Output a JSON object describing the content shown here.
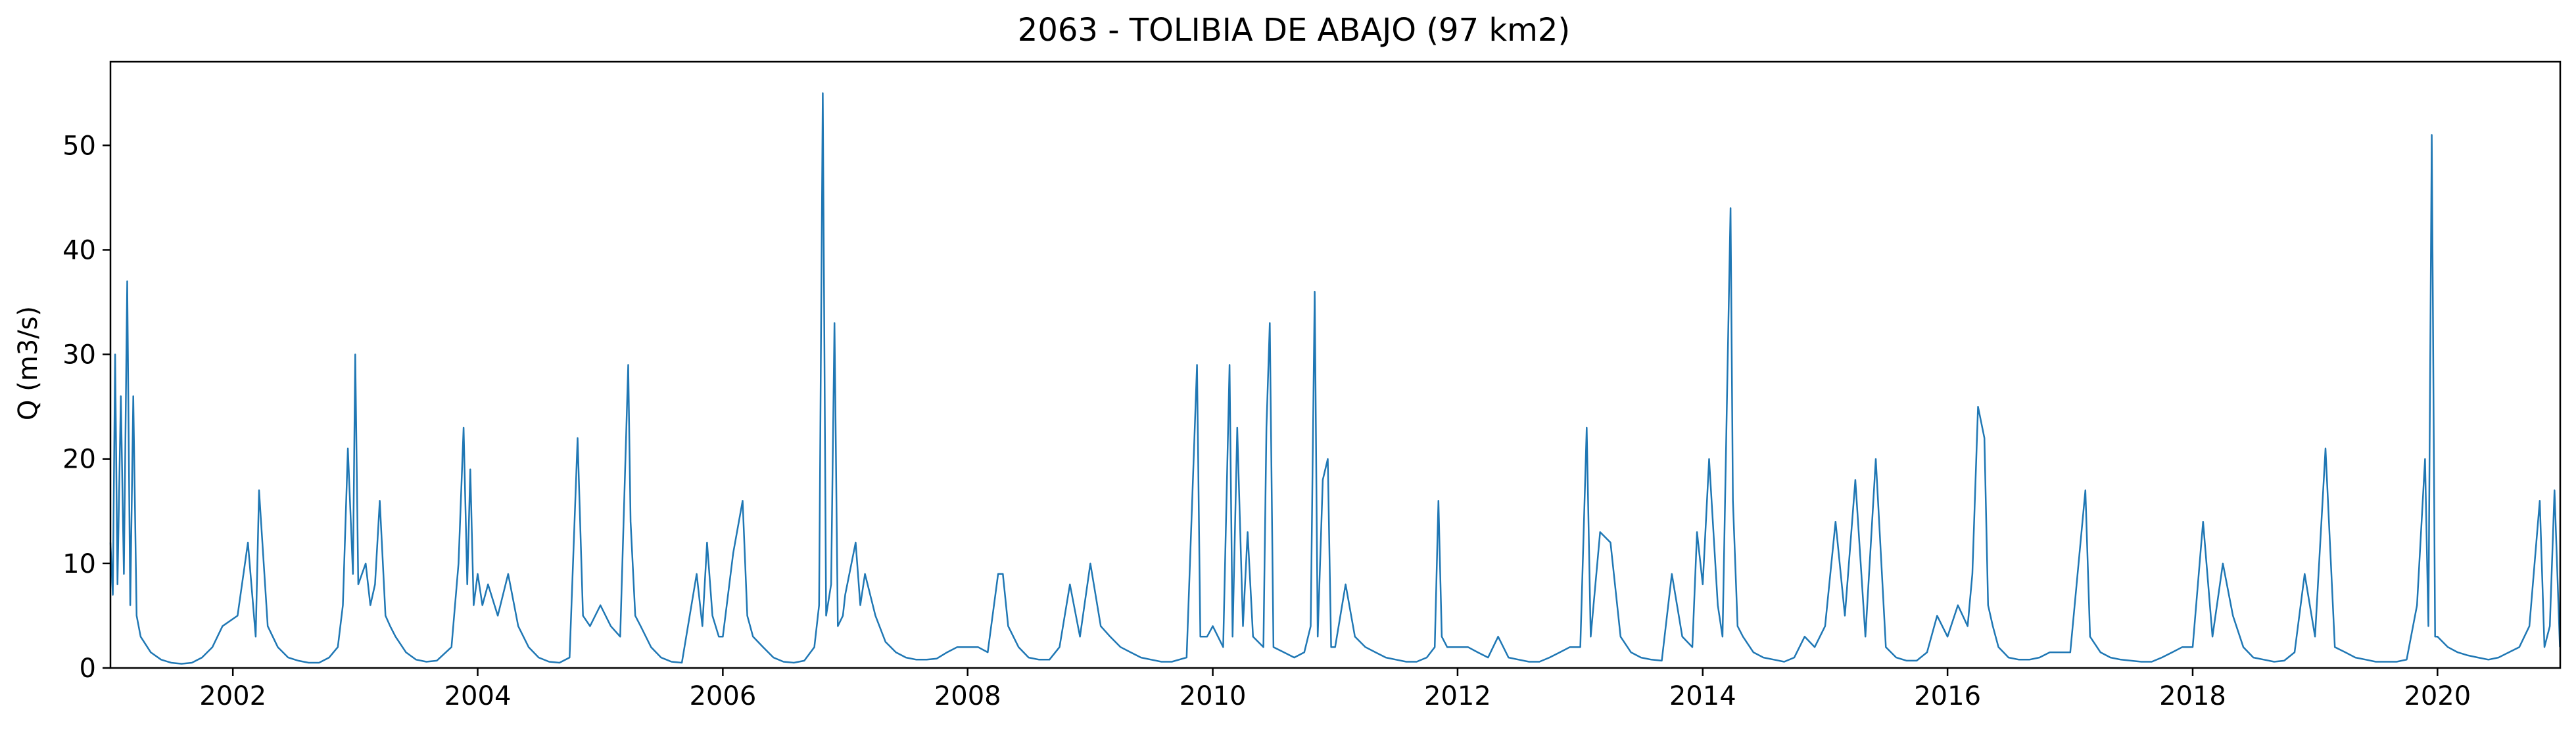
{
  "chart_data": {
    "type": "line",
    "title": "2063 - TOLIBIA DE ABAJO (97 km2)",
    "xlabel": "",
    "ylabel": "Q (m3/s)",
    "x_axis": "date",
    "xlim": [
      "2001-01-01",
      "2021-01-01"
    ],
    "ylim": [
      0,
      58
    ],
    "x_ticks": [
      "2002",
      "2004",
      "2006",
      "2008",
      "2010",
      "2012",
      "2014",
      "2016",
      "2018",
      "2020"
    ],
    "y_ticks": [
      0,
      10,
      20,
      30,
      40,
      50
    ],
    "grid": false,
    "legend": "none",
    "series_color": "#1f77b4",
    "series": [
      {
        "x": [
          "2001-01-01",
          "2001-01-08",
          "2001-01-15",
          "2001-01-22",
          "2001-02-01",
          "2001-02-10",
          "2001-02-20",
          "2001-03-01",
          "2001-03-10",
          "2001-03-20",
          "2001-04-01",
          "2001-05-01",
          "2001-06-01",
          "2001-07-01",
          "2001-08-01",
          "2001-09-01",
          "2001-10-01",
          "2001-11-01",
          "2001-12-01",
          "2002-01-15",
          "2002-02-15",
          "2002-03-10",
          "2002-03-20",
          "2002-04-15",
          "2002-05-15",
          "2002-06-15",
          "2002-07-15",
          "2002-08-15",
          "2002-09-15",
          "2002-10-15",
          "2002-11-10",
          "2002-11-25",
          "2002-12-10",
          "2002-12-25",
          "2003-01-01",
          "2003-01-10",
          "2003-02-01",
          "2003-02-15",
          "2003-03-01",
          "2003-03-15",
          "2003-04-01",
          "2003-04-15",
          "2003-05-01",
          "2003-06-01",
          "2003-07-01",
          "2003-08-01",
          "2003-09-01",
          "2003-10-15",
          "2003-11-05",
          "2003-11-20",
          "2003-12-01",
          "2003-12-10",
          "2003-12-20",
          "2004-01-01",
          "2004-01-15",
          "2004-02-01",
          "2004-03-01",
          "2004-04-01",
          "2004-05-01",
          "2004-06-01",
          "2004-07-01",
          "2004-08-01",
          "2004-09-01",
          "2004-10-01",
          "2004-10-25",
          "2004-11-10",
          "2004-12-01",
          "2005-01-01",
          "2005-02-01",
          "2005-03-01",
          "2005-03-25",
          "2005-04-01",
          "2005-04-15",
          "2005-05-01",
          "2005-06-01",
          "2005-07-01",
          "2005-08-01",
          "2005-09-01",
          "2005-10-15",
          "2005-11-01",
          "2005-11-15",
          "2005-12-01",
          "2005-12-20",
          "2006-01-01",
          "2006-02-01",
          "2006-03-01",
          "2006-03-15",
          "2006-04-01",
          "2006-05-01",
          "2006-06-01",
          "2006-07-01",
          "2006-08-01",
          "2006-09-01",
          "2006-10-01",
          "2006-10-15",
          "2006-10-26",
          "2006-11-05",
          "2006-11-20",
          "2006-11-30",
          "2006-12-10",
          "2006-12-25",
          "2007-01-01",
          "2007-02-01",
          "2007-02-15",
          "2007-03-01",
          "2007-04-01",
          "2007-05-01",
          "2007-06-01",
          "2007-07-01",
          "2007-08-01",
          "2007-09-01",
          "2007-10-01",
          "2007-11-01",
          "2007-12-01",
          "2008-01-01",
          "2008-02-01",
          "2008-03-01",
          "2008-04-01",
          "2008-04-15",
          "2008-05-01",
          "2008-06-01",
          "2008-07-01",
          "2008-08-01",
          "2008-09-01",
          "2008-10-01",
          "2008-11-01",
          "2008-12-01",
          "2009-01-01",
          "2009-02-01",
          "2009-03-01",
          "2009-04-01",
          "2009-05-01",
          "2009-06-01",
          "2009-07-01",
          "2009-08-01",
          "2009-09-01",
          "2009-10-15",
          "2009-11-15",
          "2009-11-25",
          "2009-12-15",
          "2010-01-01",
          "2010-02-01",
          "2010-02-20",
          "2010-03-01",
          "2010-03-15",
          "2010-04-01",
          "2010-04-15",
          "2010-05-01",
          "2010-06-01",
          "2010-06-10",
          "2010-06-20",
          "2010-07-01",
          "2010-08-01",
          "2010-09-01",
          "2010-10-01",
          "2010-10-20",
          "2010-11-01",
          "2010-11-10",
          "2010-11-25",
          "2010-12-10",
          "2010-12-20",
          "2011-01-01",
          "2011-02-01",
          "2011-03-01",
          "2011-04-01",
          "2011-05-01",
          "2011-06-01",
          "2011-07-01",
          "2011-08-01",
          "2011-09-01",
          "2011-10-01",
          "2011-10-25",
          "2011-11-05",
          "2011-11-15",
          "2011-12-01",
          "2012-01-01",
          "2012-02-01",
          "2012-03-01",
          "2012-04-01",
          "2012-05-01",
          "2012-06-01",
          "2012-07-01",
          "2012-08-01",
          "2012-09-01",
          "2012-10-01",
          "2012-11-01",
          "2012-12-01",
          "2013-01-01",
          "2013-01-20",
          "2013-02-01",
          "2013-03-01",
          "2013-04-01",
          "2013-05-01",
          "2013-06-01",
          "2013-07-01",
          "2013-08-01",
          "2013-09-01",
          "2013-10-01",
          "2013-11-01",
          "2013-12-01",
          "2013-12-15",
          "2014-01-01",
          "2014-01-20",
          "2014-02-15",
          "2014-03-01",
          "2014-03-25",
          "2014-04-01",
          "2014-04-15",
          "2014-05-01",
          "2014-06-01",
          "2014-07-01",
          "2014-08-01",
          "2014-09-01",
          "2014-10-01",
          "2014-11-01",
          "2014-12-01",
          "2015-01-01",
          "2015-02-01",
          "2015-03-01",
          "2015-04-01",
          "2015-05-01",
          "2015-06-01",
          "2015-07-01",
          "2015-08-01",
          "2015-09-01",
          "2015-10-01",
          "2015-11-01",
          "2015-12-01",
          "2016-01-01",
          "2016-02-01",
          "2016-03-01",
          "2016-03-15",
          "2016-04-01",
          "2016-04-20",
          "2016-05-01",
          "2016-05-15",
          "2016-06-01",
          "2016-07-01",
          "2016-08-01",
          "2016-09-01",
          "2016-10-01",
          "2016-11-01",
          "2016-12-01",
          "2017-01-01",
          "2017-02-15",
          "2017-03-01",
          "2017-04-01",
          "2017-05-01",
          "2017-06-01",
          "2017-07-01",
          "2017-08-01",
          "2017-09-01",
          "2017-10-01",
          "2017-11-01",
          "2017-12-01",
          "2018-01-01",
          "2018-02-01",
          "2018-03-01",
          "2018-04-01",
          "2018-05-01",
          "2018-06-01",
          "2018-07-01",
          "2018-08-01",
          "2018-09-01",
          "2018-10-01",
          "2018-11-01",
          "2018-12-01",
          "2019-01-01",
          "2019-02-01",
          "2019-03-01",
          "2019-04-01",
          "2019-05-01",
          "2019-06-01",
          "2019-07-01",
          "2019-08-01",
          "2019-09-01",
          "2019-10-01",
          "2019-11-01",
          "2019-11-25",
          "2019-12-05",
          "2019-12-15",
          "2019-12-25",
          "2020-01-01",
          "2020-02-01",
          "2020-03-01",
          "2020-04-01",
          "2020-05-01",
          "2020-06-01",
          "2020-07-01",
          "2020-08-01",
          "2020-09-01",
          "2020-10-01",
          "2020-11-01",
          "2020-11-15",
          "2020-12-01",
          "2020-12-15",
          "2020-12-31"
        ],
        "y": [
          12,
          7,
          30,
          8,
          26,
          9,
          37,
          6,
          26,
          5,
          3,
          1.5,
          0.8,
          0.5,
          0.4,
          0.5,
          1,
          2,
          4,
          5,
          12,
          3,
          17,
          4,
          2,
          1,
          0.7,
          0.5,
          0.5,
          1,
          2,
          6,
          21,
          9,
          30,
          8,
          10,
          6,
          8,
          16,
          5,
          4,
          3,
          1.5,
          0.8,
          0.6,
          0.7,
          2,
          10,
          23,
          8,
          19,
          6,
          9,
          6,
          8,
          5,
          9,
          4,
          2,
          1,
          0.6,
          0.5,
          1,
          22,
          5,
          4,
          6,
          4,
          3,
          29,
          14,
          5,
          4,
          2,
          1,
          0.6,
          0.5,
          9,
          4,
          12,
          5,
          3,
          3,
          11,
          16,
          5,
          3,
          2,
          1,
          0.6,
          0.5,
          0.7,
          2,
          6,
          55,
          5,
          8,
          33,
          4,
          5,
          7,
          12,
          6,
          9,
          5,
          2.5,
          1.5,
          1,
          0.8,
          0.8,
          0.9,
          1.5,
          2,
          2,
          2,
          1.5,
          9,
          9,
          4,
          2,
          1,
          0.8,
          0.8,
          2,
          8,
          3,
          10,
          4,
          3,
          2,
          1.5,
          1,
          0.8,
          0.6,
          0.6,
          1,
          29,
          3,
          3,
          4,
          2,
          29,
          3,
          23,
          4,
          13,
          3,
          2,
          23,
          33,
          2,
          1.5,
          1,
          1.5,
          4,
          36,
          3,
          18,
          20,
          2,
          2,
          8,
          3,
          2,
          1.5,
          1,
          0.8,
          0.6,
          0.6,
          1,
          2,
          16,
          3,
          2,
          2,
          2,
          1.5,
          1,
          3,
          1,
          0.8,
          0.6,
          0.6,
          1,
          1.5,
          2,
          2,
          23,
          3,
          13,
          12,
          3,
          1.5,
          1,
          0.8,
          0.7,
          9,
          3,
          2,
          13,
          8,
          20,
          6,
          3,
          44,
          16,
          4,
          3,
          1.5,
          1,
          0.8,
          0.6,
          1,
          3,
          2,
          4,
          14,
          5,
          18,
          3,
          20,
          2,
          1,
          0.7,
          0.7,
          1.5,
          5,
          3,
          6,
          4,
          9,
          25,
          22,
          6,
          4,
          2,
          1,
          0.8,
          0.8,
          1,
          1.5,
          1.5,
          1.5,
          17,
          3,
          1.5,
          1,
          0.8,
          0.7,
          0.6,
          0.6,
          1,
          1.5,
          2,
          2,
          14,
          3,
          10,
          5,
          2,
          1,
          0.8,
          0.6,
          0.7,
          1.5,
          9,
          3,
          21,
          2,
          1.5,
          1,
          0.8,
          0.6,
          0.6,
          0.6,
          0.8,
          6,
          20,
          4,
          51,
          3,
          3,
          2,
          1.5,
          1.2,
          1,
          0.8,
          1,
          1.5,
          2,
          4,
          16,
          2,
          4,
          17,
          2
        ]
      }
    ]
  }
}
